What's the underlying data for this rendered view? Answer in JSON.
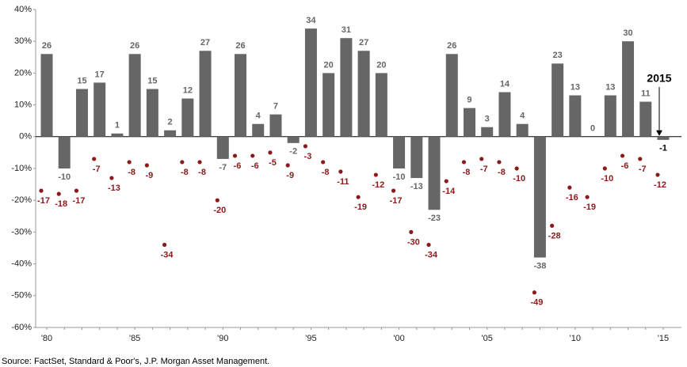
{
  "chart_data": {
    "type": "bar",
    "categories": [
      "'80",
      null,
      null,
      null,
      null,
      "'85",
      null,
      null,
      null,
      null,
      "'90",
      null,
      null,
      null,
      null,
      "'95",
      null,
      null,
      null,
      null,
      "'00",
      null,
      null,
      null,
      null,
      "'05",
      null,
      null,
      null,
      null,
      "'10",
      null,
      null,
      null,
      null,
      "'15"
    ],
    "series": [
      {
        "type": "bar",
        "color": "#666666",
        "values": [
          26,
          -10,
          15,
          17,
          1,
          26,
          15,
          2,
          12,
          27,
          -7,
          26,
          4,
          7,
          -2,
          34,
          20,
          31,
          27,
          20,
          -10,
          -13,
          -23,
          26,
          9,
          3,
          14,
          4,
          -38,
          23,
          13,
          0,
          13,
          30,
          11,
          -1
        ]
      },
      {
        "type": "scatter",
        "color": "#8b1a1a",
        "values": [
          -17,
          -18,
          -17,
          -7,
          -13,
          -8,
          -9,
          -34,
          -8,
          -8,
          -20,
          -6,
          -6,
          -5,
          -9,
          -3,
          -8,
          -11,
          -19,
          -12,
          -17,
          -30,
          -34,
          -14,
          -8,
          -7,
          -8,
          -10,
          -49,
          -28,
          -16,
          -19,
          -10,
          -6,
          -7,
          -12
        ]
      }
    ],
    "ylim": [
      -60,
      40
    ],
    "yticks": [
      {
        "value": -60,
        "label": "-60%"
      },
      {
        "value": -50,
        "label": "-50%"
      },
      {
        "value": -40,
        "label": "-40%"
      },
      {
        "value": -30,
        "label": "-30%"
      },
      {
        "value": -20,
        "label": "-20%"
      },
      {
        "value": -10,
        "label": "-10%"
      },
      {
        "value": 0,
        "label": "0%"
      },
      {
        "value": 10,
        "label": "10%"
      },
      {
        "value": 20,
        "label": "20%"
      },
      {
        "value": 30,
        "label": "30%"
      },
      {
        "value": 40,
        "label": "40%"
      }
    ],
    "annotation": "2015",
    "source": "Source: FactSet, Standard & Poor's, J.P. Morgan Asset Management."
  }
}
